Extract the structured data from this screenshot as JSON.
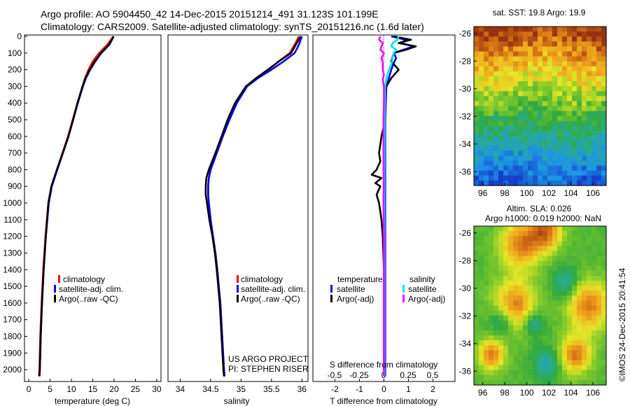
{
  "header": {
    "line1": "Argo profile: AO 5904450_42 14-Dec-2015 20151214_491 31.123S 101.199E",
    "line2": "Climatology: CARS2009. Satellite-adjusted climatology: synTS_20151216.nc (1.6d later)"
  },
  "credits": {
    "project": "US ARGO PROJECT",
    "pi": "PI: STEPHEN RISER"
  },
  "stamp": "©IMOS 24-Dec-2015 20:41:54",
  "colors": {
    "climatology": "#ff0000",
    "satellite": "#0000ff",
    "argo": "#000000",
    "salinity_satellite": "#00e5ee",
    "salinity_argo": "#ff00ff"
  },
  "chart_data": [
    {
      "type": "line",
      "xlabel": "temperature (deg C)",
      "ylabel": "",
      "xlim": [
        -1,
        31
      ],
      "ylim": [
        2050,
        0
      ],
      "xticks": [
        0,
        5,
        10,
        15,
        20,
        25,
        30
      ],
      "yticks": [
        0,
        100,
        200,
        300,
        400,
        500,
        600,
        700,
        800,
        900,
        1000,
        1100,
        1200,
        1300,
        1400,
        1500,
        1600,
        1700,
        1800,
        1900,
        2000
      ],
      "legend": [
        "climatology",
        "satellite-adj. clim.",
        "Argo(..raw -QC)"
      ],
      "series": [
        {
          "name": "climatology",
          "color": "#ff0000",
          "depth": [
            0,
            50,
            100,
            150,
            200,
            250,
            300,
            400,
            500,
            600,
            700,
            800,
            900,
            1000,
            1200,
            1400,
            1600,
            1800,
            2000,
            2040
          ],
          "values": [
            19.8,
            18.4,
            16.5,
            15.0,
            14.0,
            13.2,
            12.6,
            11.4,
            10.3,
            9.2,
            7.9,
            6.6,
            5.3,
            4.6,
            3.9,
            3.4,
            3.0,
            2.7,
            2.5,
            2.4
          ]
        },
        {
          "name": "satellite-adj. clim.",
          "color": "#0000ff",
          "depth": [
            0,
            50,
            100,
            150,
            200,
            250,
            300,
            400,
            500,
            600,
            700,
            800,
            900,
            1000,
            1200,
            1400,
            1600,
            1800,
            2000,
            2040
          ],
          "values": [
            19.9,
            18.9,
            17.0,
            15.6,
            14.4,
            13.4,
            12.7,
            11.5,
            10.4,
            9.3,
            8.0,
            6.7,
            5.4,
            4.7,
            4.0,
            3.5,
            3.1,
            2.8,
            2.6,
            2.5
          ]
        },
        {
          "name": "Argo(..raw -QC)",
          "color": "#000000",
          "depth": [
            0,
            50,
            100,
            150,
            200,
            250,
            300,
            400,
            500,
            600,
            700,
            800,
            900,
            1000,
            1200,
            1400,
            1600,
            1800,
            2000,
            2040
          ],
          "values": [
            19.9,
            18.8,
            16.9,
            15.5,
            14.3,
            13.3,
            12.6,
            11.4,
            10.4,
            9.3,
            8.0,
            6.6,
            5.3,
            4.6,
            4.0,
            3.5,
            3.1,
            2.8,
            2.6,
            2.5
          ]
        }
      ]
    },
    {
      "type": "line",
      "xlabel": "salinity",
      "ylabel": "",
      "xlim": [
        33.8,
        36.1
      ],
      "ylim": [
        2050,
        0
      ],
      "xticks": [
        34,
        34.5,
        35,
        35.5,
        36
      ],
      "xticklabels": [
        "34",
        "34.5",
        "35",
        "35.5",
        "36"
      ],
      "legend": [
        "climatology",
        "satellite-adj. clim.",
        "Argo(..raw -QC)"
      ],
      "series": [
        {
          "name": "climatology",
          "color": "#ff0000",
          "depth": [
            0,
            50,
            100,
            150,
            200,
            250,
            300,
            400,
            500,
            600,
            700,
            800,
            850,
            900,
            950,
            1000,
            1100,
            1200,
            1300,
            1400,
            1600,
            1800,
            2000,
            2040
          ],
          "values": [
            35.95,
            35.88,
            35.8,
            35.62,
            35.45,
            35.25,
            35.08,
            34.92,
            34.8,
            34.7,
            34.6,
            34.5,
            34.47,
            34.46,
            34.46,
            34.47,
            34.5,
            34.54,
            34.58,
            34.61,
            34.66,
            34.69,
            34.72,
            34.73
          ]
        },
        {
          "name": "satellite-adj. clim.",
          "color": "#0000ff",
          "depth": [
            0,
            50,
            100,
            150,
            200,
            250,
            300,
            400,
            500,
            600,
            700,
            800,
            850,
            900,
            950,
            1000,
            1100,
            1200,
            1300,
            1400,
            1600,
            1800,
            2000,
            2040
          ],
          "values": [
            36.0,
            35.95,
            35.88,
            35.7,
            35.5,
            35.28,
            35.1,
            34.93,
            34.81,
            34.7,
            34.6,
            34.5,
            34.47,
            34.46,
            34.46,
            34.47,
            34.5,
            34.54,
            34.58,
            34.61,
            34.66,
            34.69,
            34.72,
            34.73
          ]
        },
        {
          "name": "Argo(..raw -QC)",
          "color": "#000000",
          "depth": [
            0,
            50,
            100,
            150,
            200,
            250,
            300,
            400,
            500,
            600,
            700,
            800,
            850,
            900,
            950,
            1000,
            1100,
            1200,
            1300,
            1400,
            1600,
            1800,
            2000,
            2040
          ],
          "values": [
            35.98,
            35.9,
            35.82,
            35.62,
            35.44,
            35.25,
            35.08,
            34.9,
            34.78,
            34.68,
            34.58,
            34.47,
            34.43,
            34.42,
            34.42,
            34.44,
            34.48,
            34.53,
            34.57,
            34.6,
            34.65,
            34.68,
            34.71,
            34.72
          ]
        }
      ]
    },
    {
      "type": "line",
      "xlabel": "T difference from climatology",
      "top_xlabel": "S difference from climatology",
      "xlim": [
        -2.9,
        2.9
      ],
      "ylim": [
        2050,
        0
      ],
      "xticks": [
        -2,
        -1,
        0,
        1,
        2
      ],
      "top_xticks": [
        -0.5,
        -0.25,
        0,
        0.25,
        0.5
      ],
      "top_xticklabels": [
        "-0.5",
        "-0.25",
        "0",
        "0.25",
        "0.5"
      ],
      "legend_titles": [
        "temperature",
        "salinity"
      ],
      "legend": [
        "satellite",
        "Argo(-adj)",
        "satellite",
        "Argo(-adj)"
      ],
      "series": [
        {
          "name": "satellite",
          "color": "#0000ff",
          "depth": [
            0,
            20,
            40,
            60,
            80,
            100,
            130,
            160,
            200,
            300,
            500,
            1000,
            2040
          ],
          "values": [
            0.3,
            0.9,
            0.7,
            1.2,
            0.8,
            0.4,
            0.5,
            0.4,
            0.3,
            0.1,
            0.05,
            0.05,
            0.05
          ]
        },
        {
          "name": "Argo(-adj)",
          "color": "#000000",
          "depth": [
            0,
            20,
            40,
            60,
            80,
            100,
            150,
            200,
            250,
            300,
            400,
            500,
            600,
            700,
            750,
            800,
            830,
            850,
            880,
            900,
            950,
            1000,
            1100,
            1200,
            1400,
            1600,
            2040
          ],
          "values": [
            0.4,
            1.1,
            0.6,
            1.3,
            0.9,
            0.4,
            0.3,
            0.6,
            0.3,
            0.1,
            0.0,
            0.05,
            -0.1,
            -0.2,
            -0.15,
            -0.3,
            -0.5,
            -0.1,
            -0.35,
            -0.15,
            -0.3,
            -0.2,
            -0.1,
            -0.05,
            0.0,
            0.0,
            0.0
          ]
        },
        {
          "name": "satellite",
          "color": "#00e5ee",
          "depth": [
            0,
            20,
            40,
            60,
            80,
            100,
            130,
            160,
            200,
            250,
            300,
            500,
            800,
            1200,
            1600,
            2040
          ],
          "values": [
            0.6,
            0.55,
            0.35,
            0.3,
            0.5,
            0.4,
            0.35,
            0.32,
            0.2,
            0.1,
            0.05,
            0.03,
            0.02,
            0.02,
            0.02,
            0.02
          ]
        },
        {
          "name": "Argo(-adj)",
          "color": "#ff00ff",
          "depth": [
            0,
            20,
            40,
            60,
            80,
            100,
            130,
            160,
            200,
            230,
            260,
            300,
            400,
            500,
            700,
            900,
            1000,
            1100,
            1200,
            1300,
            1600,
            2040
          ],
          "values": [
            -0.15,
            -0.2,
            -0.05,
            -0.1,
            -0.15,
            0.0,
            -0.1,
            -0.05,
            -0.05,
            0.0,
            -0.05,
            0.0,
            0.0,
            -0.02,
            -0.02,
            -0.01,
            -0.02,
            -0.01,
            0.0,
            0.0,
            0.0,
            0.0
          ]
        }
      ]
    },
    {
      "type": "heatmap",
      "title": "sat. SST: 19.8 Argo: 19.9",
      "xticks": [
        96,
        98,
        100,
        102,
        104,
        106
      ],
      "yticks": [
        -26,
        -28,
        -30,
        -32,
        -34,
        -36
      ],
      "xlim": [
        95.2,
        107.2
      ],
      "ylim": [
        -37.0,
        -25.5
      ],
      "colormap": "jet",
      "gradient_north_to_south": "brown → orange → yellow → green → teal → blue"
    },
    {
      "type": "heatmap",
      "title": "Altim. SLA: 0.026",
      "subtitle": "Argo h1000: 0.019 h2000: NaN",
      "xticks": [
        96,
        98,
        100,
        102,
        104,
        106
      ],
      "yticks": [
        -26,
        -28,
        -30,
        -32,
        -34,
        -36
      ],
      "xlim": [
        95.2,
        107.2
      ],
      "ylim": [
        -37.0,
        -25.5
      ],
      "colormap": "jet",
      "features": "green background with orange-red eddy blobs and teal patches"
    }
  ]
}
